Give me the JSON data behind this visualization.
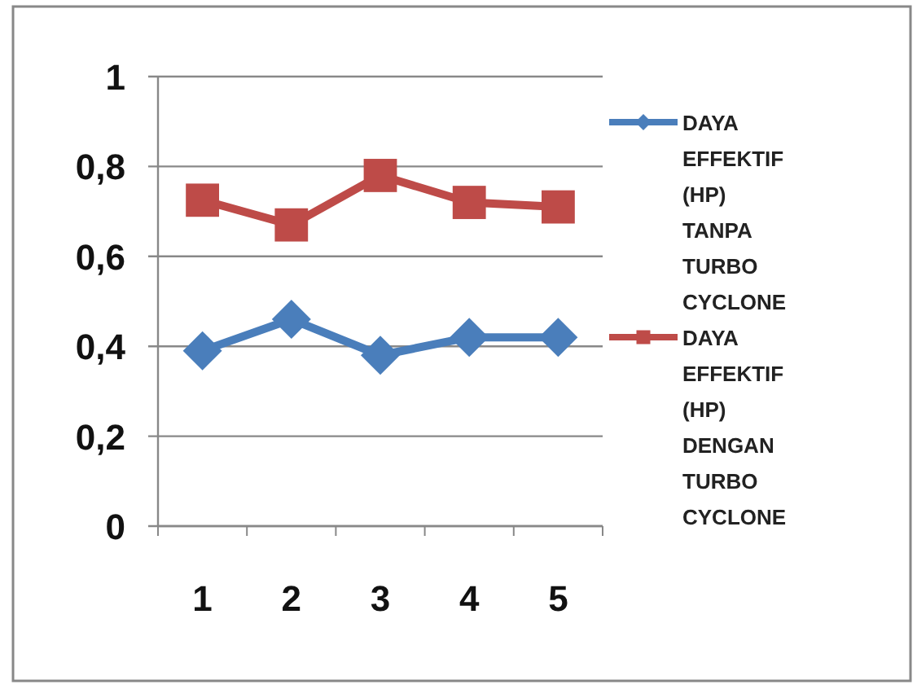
{
  "chart_data": {
    "type": "line",
    "categories": [
      "1",
      "2",
      "3",
      "4",
      "5"
    ],
    "series": [
      {
        "name": "DAYA EFFEKTIF (HP) TANPA TURBO CYCLONE",
        "color": "#4a7ebb",
        "marker": "diamond",
        "values": [
          0.39,
          0.46,
          0.38,
          0.42,
          0.42
        ]
      },
      {
        "name": "DAYA EFFEKTIF (HP) DENGAN TURBO CYCLONE",
        "color": "#be4b48",
        "marker": "square",
        "values": [
          0.725,
          0.67,
          0.78,
          0.72,
          0.71
        ]
      }
    ],
    "ylim": [
      0,
      1
    ],
    "yticks": [
      0,
      {
        "value": 0.2,
        "label": "0,2"
      },
      {
        "value": 0.4,
        "label": "0,4"
      },
      {
        "value": 0.6,
        "label": "0,6"
      },
      {
        "value": 0.8,
        "label": "0,8"
      },
      1
    ],
    "grid": "y",
    "legend": "right"
  }
}
